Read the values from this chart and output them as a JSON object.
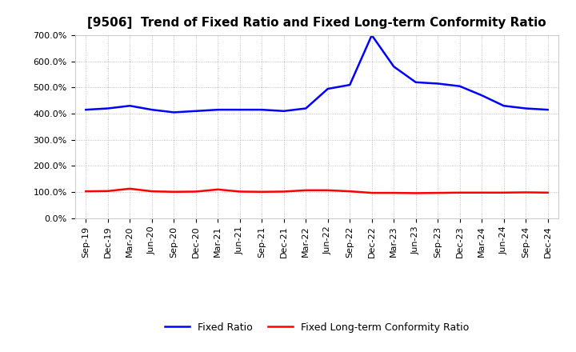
{
  "title": "[9506]  Trend of Fixed Ratio and Fixed Long-term Conformity Ratio",
  "x_labels": [
    "Sep-19",
    "Dec-19",
    "Mar-20",
    "Jun-20",
    "Sep-20",
    "Dec-20",
    "Mar-21",
    "Jun-21",
    "Sep-21",
    "Dec-21",
    "Mar-22",
    "Jun-22",
    "Sep-22",
    "Dec-22",
    "Mar-23",
    "Jun-23",
    "Sep-23",
    "Dec-23",
    "Mar-24",
    "Jun-24",
    "Sep-24",
    "Dec-24"
  ],
  "fixed_ratio": [
    415,
    420,
    430,
    415,
    405,
    410,
    415,
    415,
    415,
    410,
    420,
    495,
    510,
    700,
    580,
    520,
    515,
    505,
    470,
    430,
    420,
    415
  ],
  "fixed_lt_ratio": [
    103,
    104,
    113,
    103,
    101,
    102,
    110,
    102,
    101,
    102,
    107,
    107,
    103,
    97,
    97,
    96,
    97,
    98,
    98,
    98,
    99,
    98
  ],
  "fixed_ratio_color": "#0000ff",
  "fixed_lt_ratio_color": "#ff0000",
  "background_color": "#ffffff",
  "grid_color": "#b0b0b0",
  "ylim": [
    0,
    700
  ],
  "yticks": [
    0,
    100,
    200,
    300,
    400,
    500,
    600,
    700
  ],
  "legend_fixed_ratio": "Fixed Ratio",
  "legend_fixed_lt_ratio": "Fixed Long-term Conformity Ratio",
  "title_fontsize": 11,
  "tick_fontsize": 8,
  "legend_fontsize": 9
}
